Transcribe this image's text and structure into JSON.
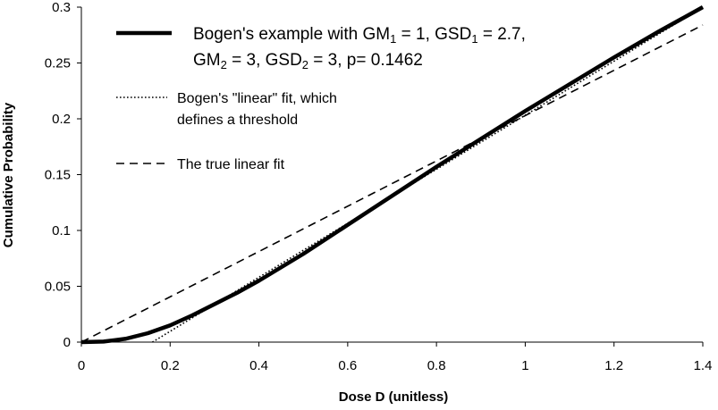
{
  "chart_data": {
    "type": "line",
    "title": "",
    "xlabel": "Dose D (unitless)",
    "ylabel": "Cumulative Probability",
    "xlim": [
      0,
      1.4
    ],
    "ylim": [
      0,
      0.3
    ],
    "x_ticks": [
      "0",
      "0.2",
      "0.4",
      "0.6",
      "0.8",
      "1",
      "1.2",
      "1.4"
    ],
    "y_ticks": [
      "0",
      "0.05",
      "0.1",
      "0.15",
      "0.2",
      "0.25",
      "0.3"
    ],
    "grid": false,
    "legend_position": "top-left",
    "series": [
      {
        "name": "Bogen's example with GM1 = 1, GSD1 = 2.7, GM2 = 3, GSD2 = 3, p= 0.1462",
        "legend_line1": {
          "pre1": "Bogen's example with GM",
          "sub1": "1",
          "mid1": " = 1, GSD",
          "sub2": "1",
          "post1": " = 2.7,"
        },
        "legend_line2": {
          "pre1": "GM",
          "sub1": "2",
          "mid1": " = 3, GSD",
          "sub2": "2",
          "post1": " = 3, p= 0.1462"
        },
        "style": "solid-thick",
        "color": "#000000",
        "x": [
          0,
          0.05,
          0.1,
          0.15,
          0.2,
          0.25,
          0.3,
          0.35,
          0.4,
          0.45,
          0.5,
          0.6,
          0.7,
          0.8,
          0.9,
          1.0,
          1.1,
          1.2,
          1.3,
          1.4
        ],
        "y": [
          0,
          0.0005,
          0.003,
          0.008,
          0.015,
          0.024,
          0.034,
          0.044,
          0.055,
          0.067,
          0.079,
          0.105,
          0.131,
          0.157,
          0.182,
          0.207,
          0.231,
          0.255,
          0.278,
          0.3
        ]
      },
      {
        "name": "Bogen's \"linear\" fit, which defines a threshold",
        "legend_lines": [
          "Bogen's \"linear\" fit, which",
          "defines a threshold"
        ],
        "style": "dotted",
        "color": "#000000",
        "x": [
          0.16,
          1.4
        ],
        "y": [
          0,
          0.3
        ]
      },
      {
        "name": "The true linear fit",
        "legend_lines": [
          "The true linear fit"
        ],
        "style": "dashed",
        "color": "#000000",
        "x": [
          0,
          1.4
        ],
        "y": [
          0,
          0.284
        ]
      }
    ]
  }
}
